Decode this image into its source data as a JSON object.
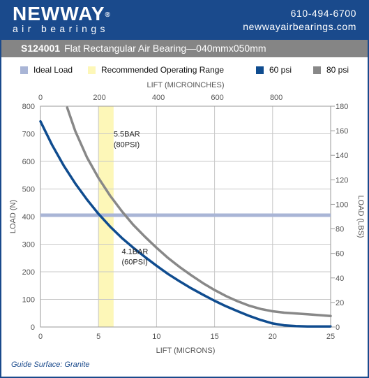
{
  "header": {
    "logo_text": "NEWWAY",
    "logo_reg": "®",
    "logo_sub": "air bearings",
    "phone": "610-494-6700",
    "website": "newwayairbearings.com"
  },
  "title": {
    "code": "S124001",
    "description": "Flat Rectangular Air Bearing—040mmx050mm"
  },
  "legend": [
    {
      "label": "Ideal Load",
      "color": "#a9b5d6"
    },
    {
      "label": "Recommended Operating Range",
      "color": "#fdf7b8"
    },
    {
      "label": "60 psi",
      "color": "#0f4c8f"
    },
    {
      "label": "80 psi",
      "color": "#888888"
    }
  ],
  "footer": {
    "text": "Guide Surface: Granite"
  },
  "chart_data": {
    "type": "line",
    "xlabel": "LIFT (MICRONS)",
    "x2label": "LIFT (MICROINCHES)",
    "ylabel": "LOAD (N)",
    "y2label": "LOAD (LBS)",
    "xlim": [
      0,
      25
    ],
    "x2lim": [
      0,
      984.25
    ],
    "ylim": [
      0,
      800
    ],
    "y2lim": [
      0,
      180
    ],
    "x_ticks": [
      0,
      5,
      10,
      15,
      20,
      25
    ],
    "x2_ticks": [
      0,
      200,
      400,
      600,
      800
    ],
    "y_ticks": [
      0,
      100,
      200,
      300,
      400,
      500,
      600,
      700,
      800
    ],
    "y2_ticks": [
      0,
      20,
      40,
      60,
      80,
      100,
      120,
      140,
      160,
      180
    ],
    "grid": true,
    "ideal_load": 405,
    "recommended_range": [
      5,
      6.3
    ],
    "series": [
      {
        "name": "60 psi",
        "color": "#0f4c8f",
        "annotation": [
          "4.1BAR",
          "(60PSI)"
        ],
        "x": [
          0,
          1,
          2,
          3,
          4,
          5,
          6,
          7,
          8,
          9,
          10,
          11,
          12,
          13,
          14,
          15,
          16,
          17,
          18,
          19,
          20,
          21,
          22,
          23,
          24,
          25
        ],
        "y": [
          745,
          660,
          585,
          520,
          462,
          410,
          364,
          323,
          287,
          254,
          222,
          192,
          165,
          140,
          117,
          95,
          75,
          57,
          40,
          25,
          13,
          6,
          3,
          2,
          2,
          2
        ]
      },
      {
        "name": "80 psi",
        "color": "#888888",
        "annotation": [
          "5.5BAR",
          "(80PSI)"
        ],
        "x": [
          2.3,
          3,
          4,
          5,
          6,
          7,
          8,
          9,
          10,
          11,
          12,
          13,
          14,
          15,
          16,
          17,
          18,
          19,
          20,
          21,
          22,
          23,
          24,
          25
        ],
        "y": [
          795,
          710,
          615,
          540,
          476,
          420,
          370,
          327,
          287,
          250,
          217,
          187,
          159,
          134,
          112,
          93,
          77,
          65,
          57,
          52,
          49,
          46,
          43,
          40
        ]
      }
    ]
  }
}
